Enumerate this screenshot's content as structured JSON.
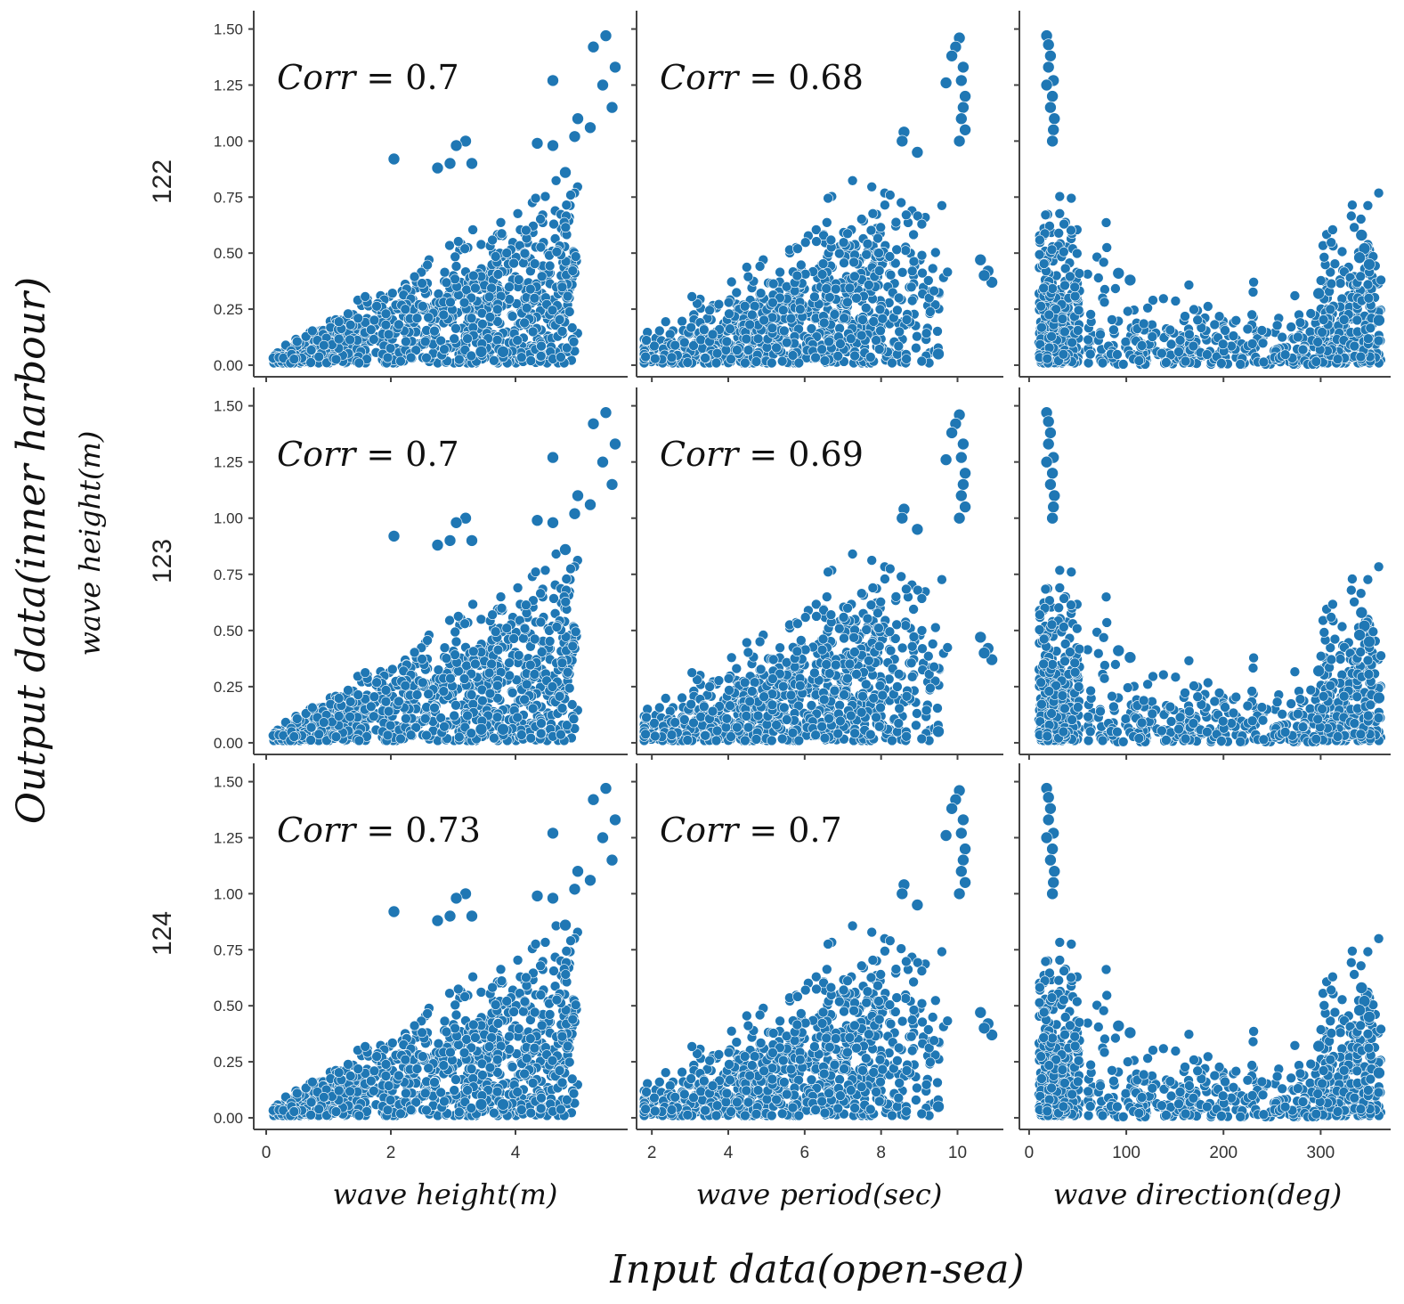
{
  "figure": {
    "ylabel_outer": "Output data(inner harbour)",
    "ylabel_inner": "wave height(m)",
    "xlabel_outer": "Input data(open-sea)",
    "marker_color": "#1f77b4"
  },
  "chart_data": {
    "type": "scatter",
    "rows": [
      {
        "label": "122",
        "corr": [
          "Corr = 0.7",
          "Corr = 0.68",
          ""
        ]
      },
      {
        "label": "123",
        "corr": [
          "Corr = 0.7",
          "Corr = 0.69",
          ""
        ]
      },
      {
        "label": "124",
        "corr": [
          "Corr = 0.73",
          "Corr = 0.7",
          ""
        ]
      }
    ],
    "columns": [
      {
        "xlabel": "wave height(m)",
        "xlim": [
          -0.2,
          5.8
        ],
        "xticks": [
          "0",
          "2",
          "4"
        ],
        "xtick_values": [
          0,
          2,
          4
        ]
      },
      {
        "xlabel": "wave period(sec)",
        "xlim": [
          1.6,
          11.2
        ],
        "xticks": [
          "2",
          "4",
          "6",
          "8",
          "10"
        ],
        "xtick_values": [
          2,
          4,
          6,
          8,
          10
        ]
      },
      {
        "xlabel": "wave direction(deg)",
        "xlim": [
          -10,
          372
        ],
        "xticks": [
          "0",
          "100",
          "200",
          "300"
        ],
        "xtick_values": [
          0,
          100,
          200,
          300
        ]
      }
    ],
    "ylim": [
      -0.02,
      1.55
    ],
    "yticks": [
      "0.00",
      "0.25",
      "0.50",
      "0.75",
      "1.00",
      "1.25",
      "1.50"
    ],
    "ytick_values": [
      0,
      0.25,
      0.5,
      0.75,
      1.0,
      1.25,
      1.5
    ],
    "grid": false,
    "legend": "none",
    "highlights": {
      "height": [
        [
          5.45,
          1.47
        ],
        [
          5.25,
          1.42
        ],
        [
          5.6,
          1.33
        ],
        [
          5.4,
          1.25
        ],
        [
          5.55,
          1.15
        ],
        [
          4.6,
          1.27
        ],
        [
          5.0,
          1.1
        ],
        [
          5.2,
          1.06
        ],
        [
          4.95,
          1.02
        ],
        [
          4.35,
          0.99
        ],
        [
          4.8,
          0.86
        ],
        [
          4.6,
          0.98
        ],
        [
          3.2,
          1.0
        ],
        [
          3.05,
          0.98
        ],
        [
          2.95,
          0.9
        ],
        [
          3.3,
          0.9
        ],
        [
          2.05,
          0.92
        ],
        [
          2.75,
          0.88
        ],
        [
          3.45,
          0.06
        ],
        [
          3.8,
          0.06
        ]
      ],
      "period": [
        [
          10.05,
          1.46
        ],
        [
          9.95,
          1.42
        ],
        [
          9.85,
          1.38
        ],
        [
          10.15,
          1.33
        ],
        [
          10.1,
          1.27
        ],
        [
          9.7,
          1.26
        ],
        [
          10.2,
          1.2
        ],
        [
          10.15,
          1.15
        ],
        [
          10.1,
          1.1
        ],
        [
          10.2,
          1.05
        ],
        [
          10.05,
          1.0
        ],
        [
          8.6,
          1.04
        ],
        [
          8.55,
          1.0
        ],
        [
          8.95,
          0.95
        ],
        [
          10.6,
          0.47
        ],
        [
          10.8,
          0.42
        ],
        [
          10.9,
          0.37
        ],
        [
          10.7,
          0.4
        ],
        [
          9.5,
          0.05
        ]
      ],
      "direction": [
        [
          18,
          1.47
        ],
        [
          20,
          1.43
        ],
        [
          22,
          1.38
        ],
        [
          20,
          1.33
        ],
        [
          25,
          1.27
        ],
        [
          18,
          1.25
        ],
        [
          24,
          1.2
        ],
        [
          22,
          1.15
        ],
        [
          26,
          1.1
        ],
        [
          25,
          1.05
        ],
        [
          24,
          1.0
        ],
        [
          92,
          0.41
        ],
        [
          104,
          0.38
        ],
        [
          298,
          0.32
        ],
        [
          342,
          0.58
        ],
        [
          345,
          0.52
        ],
        [
          340,
          0.48
        ],
        [
          350,
          0.45
        ],
        [
          360,
          0.2
        ]
      ]
    }
  }
}
